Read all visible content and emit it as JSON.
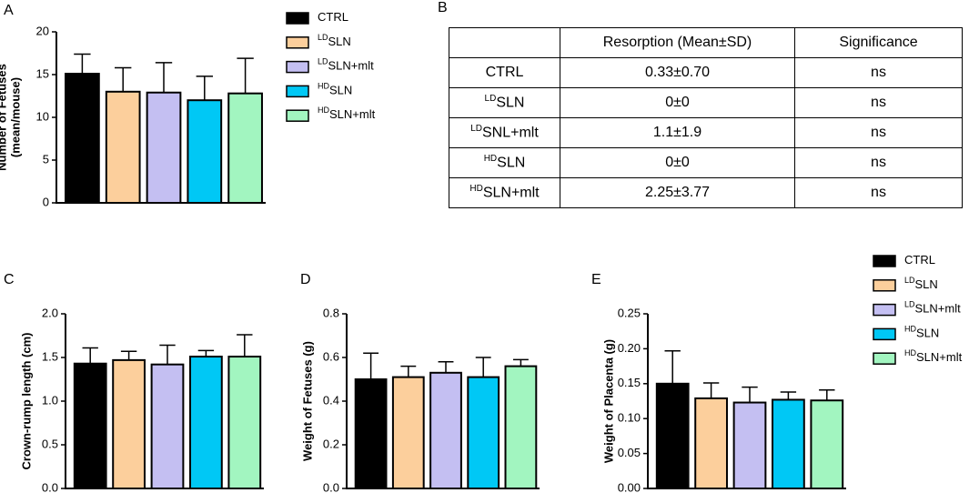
{
  "chart_data": [
    {
      "type": "bar",
      "label": "A",
      "ylabel": [
        "Number of Fetuses",
        "(mean/mouse)"
      ],
      "ylim": [
        0,
        20
      ],
      "yticks": [
        0,
        5,
        10,
        15,
        20
      ],
      "legend": true,
      "series": [
        {
          "name": "CTRL",
          "color": "#000000",
          "values": [
            15.1
          ],
          "errors": [
            2.3
          ]
        },
        {
          "name_sup": "LD",
          "name": "SLN",
          "color": "#fccf9c",
          "values": [
            13.0
          ],
          "errors": [
            2.8
          ]
        },
        {
          "name_sup": "LD",
          "name": "SLN+mlt",
          "color": "#c4bff2",
          "values": [
            12.9
          ],
          "errors": [
            3.5
          ]
        },
        {
          "name_sup": "HD",
          "name": "SLN",
          "color": "#00c8f5",
          "values": [
            12.0
          ],
          "errors": [
            2.8
          ]
        },
        {
          "name_sup": "HD",
          "name": "SLN+mlt",
          "color": "#a2f5c0",
          "values": [
            12.8
          ],
          "errors": [
            4.1
          ]
        }
      ]
    },
    {
      "type": "bar",
      "label": "C",
      "ylabel": [
        "Crown-rump length (cm)"
      ],
      "ylim": [
        0,
        2
      ],
      "yticks": [
        {
          "value": 0,
          "label": "0.0"
        },
        0.5,
        {
          "value": 1,
          "label": "1.0"
        },
        1.5,
        {
          "value": 2,
          "label": "2.0"
        }
      ],
      "legend": false,
      "series": [
        {
          "color": "#000000",
          "values": [
            1.43
          ],
          "errors": [
            0.18
          ]
        },
        {
          "color": "#fccf9c",
          "values": [
            1.47
          ],
          "errors": [
            0.1
          ]
        },
        {
          "color": "#c4bff2",
          "values": [
            1.42
          ],
          "errors": [
            0.22
          ]
        },
        {
          "color": "#00c8f5",
          "values": [
            1.51
          ],
          "errors": [
            0.07
          ]
        },
        {
          "color": "#a2f5c0",
          "values": [
            1.51
          ],
          "errors": [
            0.25
          ]
        }
      ]
    },
    {
      "type": "bar",
      "label": "D",
      "ylabel": [
        "Weight of Fetuses (g)"
      ],
      "ylim": [
        0,
        0.8
      ],
      "yticks": [
        {
          "value": 0,
          "label": "0.0"
        },
        0.2,
        0.4,
        0.6,
        0.8
      ],
      "legend": false,
      "series": [
        {
          "color": "#000000",
          "values": [
            0.5
          ],
          "errors": [
            0.12
          ]
        },
        {
          "color": "#fccf9c",
          "values": [
            0.51
          ],
          "errors": [
            0.05
          ]
        },
        {
          "color": "#c4bff2",
          "values": [
            0.53
          ],
          "errors": [
            0.05
          ]
        },
        {
          "color": "#00c8f5",
          "values": [
            0.51
          ],
          "errors": [
            0.09
          ]
        },
        {
          "color": "#a2f5c0",
          "values": [
            0.56
          ],
          "errors": [
            0.03
          ]
        }
      ]
    },
    {
      "type": "bar",
      "label": "E",
      "ylabel": [
        "Weight of Placenta (g)"
      ],
      "ylim": [
        0,
        0.25
      ],
      "yticks": [
        {
          "value": 0,
          "label": "0.00"
        },
        0.05,
        {
          "value": 0.1,
          "label": "0.10"
        },
        0.15,
        {
          "value": 0.2,
          "label": "0.20"
        },
        0.25
      ],
      "legend": true,
      "series": [
        {
          "name": "CTRL",
          "color": "#000000",
          "values": [
            0.15
          ],
          "errors": [
            0.047
          ]
        },
        {
          "name_sup": "LD",
          "name": "SLN",
          "color": "#fccf9c",
          "values": [
            0.129
          ],
          "errors": [
            0.022
          ]
        },
        {
          "name_sup": "LD",
          "name": "SLN+mlt",
          "color": "#c4bff2",
          "values": [
            0.123
          ],
          "errors": [
            0.022
          ]
        },
        {
          "name_sup": "HD",
          "name": "SLN",
          "color": "#00c8f5",
          "values": [
            0.127
          ],
          "errors": [
            0.011
          ]
        },
        {
          "name_sup": "HD",
          "name": "SLN+mlt",
          "color": "#a2f5c0",
          "values": [
            0.126
          ],
          "errors": [
            0.015
          ]
        }
      ]
    }
  ],
  "table": {
    "label": "B",
    "columns": [
      "Resorption (Mean±SD)",
      "Significance"
    ],
    "rows": [
      {
        "group": "CTRL",
        "resorption": "0.33±0.70",
        "significance": "ns"
      },
      {
        "group_sup": "LD",
        "group": "SLN",
        "resorption": "0±0",
        "significance": "ns"
      },
      {
        "group_sup": "LD",
        "group": "SNL+mlt",
        "resorption": "1.1±1.9",
        "significance": "ns"
      },
      {
        "group_sup": "HD",
        "group": "SLN",
        "resorption": "0±0",
        "significance": "ns"
      },
      {
        "group_sup": "HD",
        "group": "SLN+mlt",
        "resorption": "2.25±3.77",
        "significance": "ns"
      }
    ]
  }
}
